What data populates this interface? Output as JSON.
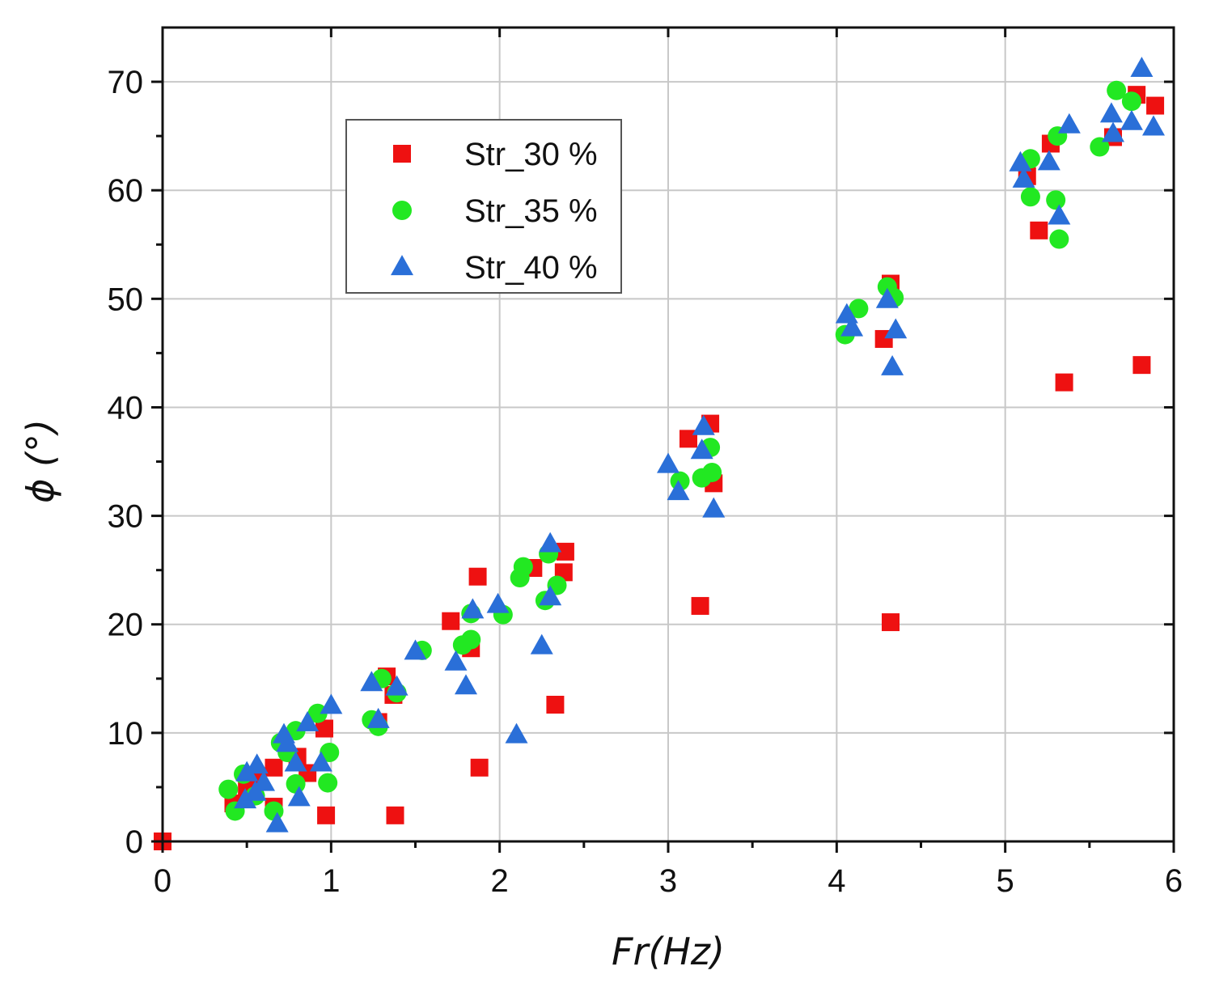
{
  "chart_data": {
    "type": "scatter",
    "title": "",
    "xlabel": "Fr(Hz)",
    "ylabel": "ϕ (°)",
    "xlim": [
      0,
      6
    ],
    "ylim": [
      0,
      75
    ],
    "xticks": [
      0,
      1,
      2,
      3,
      4,
      5,
      6
    ],
    "yticks": [
      0,
      10,
      20,
      30,
      40,
      50,
      60,
      70
    ],
    "grid": true,
    "legend_position": "upper-left",
    "series": [
      {
        "name": "Str_30 %",
        "marker": "square",
        "color": "#ee1111",
        "points": [
          [
            0.0,
            0.0
          ],
          [
            0.42,
            3.5
          ],
          [
            0.5,
            5.0
          ],
          [
            0.56,
            5.5
          ],
          [
            0.66,
            3.2
          ],
          [
            0.66,
            6.8
          ],
          [
            0.8,
            7.8
          ],
          [
            0.86,
            6.3
          ],
          [
            0.96,
            10.4
          ],
          [
            0.97,
            2.4
          ],
          [
            1.28,
            11.0
          ],
          [
            1.33,
            15.2
          ],
          [
            1.37,
            13.5
          ],
          [
            1.38,
            2.4
          ],
          [
            1.71,
            20.3
          ],
          [
            1.83,
            17.8
          ],
          [
            1.87,
            24.4
          ],
          [
            1.88,
            6.8
          ],
          [
            2.2,
            25.2
          ],
          [
            2.33,
            12.6
          ],
          [
            2.39,
            26.7
          ],
          [
            2.38,
            24.8
          ],
          [
            3.12,
            37.1
          ],
          [
            3.19,
            21.7
          ],
          [
            3.25,
            38.5
          ],
          [
            3.27,
            33.0
          ],
          [
            4.28,
            46.3
          ],
          [
            4.32,
            51.4
          ],
          [
            4.32,
            20.2
          ],
          [
            5.13,
            61.3
          ],
          [
            5.2,
            56.3
          ],
          [
            5.27,
            64.3
          ],
          [
            5.35,
            42.3
          ],
          [
            5.64,
            64.9
          ],
          [
            5.78,
            68.8
          ],
          [
            5.81,
            43.9
          ],
          [
            5.89,
            67.8
          ]
        ]
      },
      {
        "name": "Str_35 %",
        "marker": "circle",
        "color": "#22e822",
        "points": [
          [
            0.39,
            4.8
          ],
          [
            0.43,
            2.8
          ],
          [
            0.48,
            6.2
          ],
          [
            0.55,
            4.2
          ],
          [
            0.66,
            2.8
          ],
          [
            0.7,
            9.1
          ],
          [
            0.74,
            8.2
          ],
          [
            0.79,
            10.2
          ],
          [
            0.79,
            5.3
          ],
          [
            0.92,
            11.8
          ],
          [
            0.98,
            5.4
          ],
          [
            0.99,
            8.2
          ],
          [
            1.24,
            11.2
          ],
          [
            1.28,
            10.6
          ],
          [
            1.3,
            15.0
          ],
          [
            1.39,
            13.7
          ],
          [
            1.54,
            17.6
          ],
          [
            1.78,
            18.1
          ],
          [
            1.83,
            18.6
          ],
          [
            1.83,
            21.0
          ],
          [
            2.02,
            20.9
          ],
          [
            2.12,
            24.3
          ],
          [
            2.14,
            25.3
          ],
          [
            2.27,
            22.2
          ],
          [
            2.29,
            26.5
          ],
          [
            2.34,
            23.6
          ],
          [
            3.07,
            33.2
          ],
          [
            3.2,
            33.5
          ],
          [
            3.25,
            36.3
          ],
          [
            3.26,
            34.0
          ],
          [
            4.05,
            46.7
          ],
          [
            4.13,
            49.1
          ],
          [
            4.3,
            51.1
          ],
          [
            4.34,
            50.1
          ],
          [
            5.15,
            62.9
          ],
          [
            5.15,
            59.4
          ],
          [
            5.3,
            59.1
          ],
          [
            5.31,
            65.0
          ],
          [
            5.32,
            55.5
          ],
          [
            5.56,
            64.0
          ],
          [
            5.66,
            69.2
          ],
          [
            5.75,
            68.2
          ]
        ]
      },
      {
        "name": "Str_40 %",
        "marker": "triangle",
        "color": "#2a6fd8",
        "points": [
          [
            0.49,
            3.8
          ],
          [
            0.5,
            6.3
          ],
          [
            0.56,
            7.0
          ],
          [
            0.55,
            4.5
          ],
          [
            0.6,
            5.4
          ],
          [
            0.68,
            1.6
          ],
          [
            0.72,
            9.8
          ],
          [
            0.74,
            9.0
          ],
          [
            0.79,
            7.2
          ],
          [
            0.81,
            4.0
          ],
          [
            0.86,
            10.9
          ],
          [
            0.94,
            7.2
          ],
          [
            1.0,
            12.5
          ],
          [
            1.24,
            14.6
          ],
          [
            1.28,
            11.2
          ],
          [
            1.39,
            14.2
          ],
          [
            1.5,
            17.5
          ],
          [
            1.74,
            16.5
          ],
          [
            1.8,
            14.3
          ],
          [
            1.84,
            21.3
          ],
          [
            1.99,
            21.8
          ],
          [
            2.1,
            9.8
          ],
          [
            2.25,
            18.0
          ],
          [
            2.3,
            22.5
          ],
          [
            2.3,
            27.4
          ],
          [
            3.0,
            34.7
          ],
          [
            3.06,
            32.2
          ],
          [
            3.2,
            36.0
          ],
          [
            3.21,
            38.2
          ],
          [
            3.27,
            30.6
          ],
          [
            4.06,
            48.5
          ],
          [
            4.09,
            47.3
          ],
          [
            4.3,
            49.9
          ],
          [
            4.33,
            43.7
          ],
          [
            4.35,
            47.1
          ],
          [
            5.09,
            62.5
          ],
          [
            5.11,
            61.0
          ],
          [
            5.26,
            62.6
          ],
          [
            5.32,
            57.6
          ],
          [
            5.38,
            66.0
          ],
          [
            5.63,
            67.0
          ],
          [
            5.64,
            65.2
          ],
          [
            5.75,
            66.3
          ],
          [
            5.81,
            71.2
          ],
          [
            5.88,
            65.8
          ]
        ]
      }
    ]
  }
}
